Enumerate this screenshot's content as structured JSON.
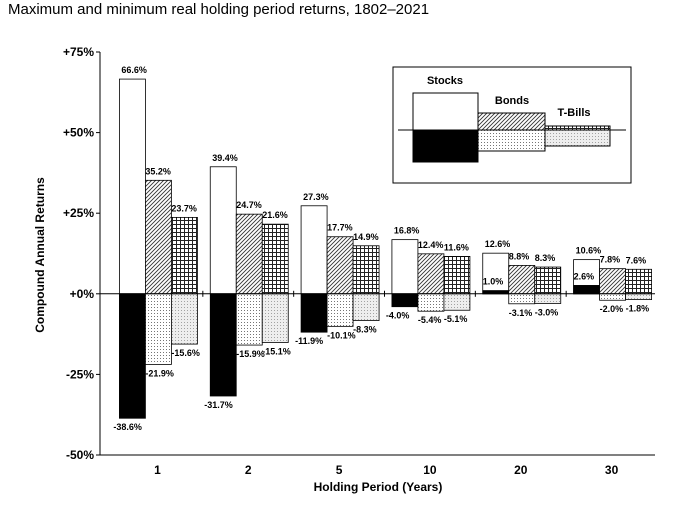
{
  "chart_data": {
    "type": "floating-bar",
    "title": "Maximum and minimum real holding period returns, 1802–2021",
    "y_label": "Compound Annual Returns",
    "x_label": "Holding Period (Years)",
    "categories": [
      "1",
      "2",
      "5",
      "10",
      "20",
      "30"
    ],
    "ylim": [
      -50,
      75
    ],
    "yticks": [
      {
        "value": 75,
        "label": "+75%"
      },
      {
        "value": 50,
        "label": "+50%"
      },
      {
        "value": 25,
        "label": "+25%"
      },
      {
        "value": 0,
        "label": "+0%"
      },
      {
        "value": -25,
        "label": "-25%"
      },
      {
        "value": -50,
        "label": "-50%"
      }
    ],
    "series": [
      {
        "name": "Stocks",
        "max_values": [
          66.6,
          39.4,
          27.3,
          16.8,
          12.6,
          10.6
        ],
        "max_value_labels": [
          "66.6%",
          "39.4%",
          "27.3%",
          "16.8%",
          "12.6%",
          "10.6%"
        ],
        "min_values": [
          -38.6,
          -31.7,
          -11.9,
          -4.0,
          1.0,
          2.6
        ],
        "min_value_labels": [
          "-38.6%",
          "-31.7%",
          "-11.9%",
          "-4.0%",
          "1.0%",
          "2.6%"
        ]
      },
      {
        "name": "Bonds",
        "max_values": [
          35.2,
          24.7,
          17.7,
          12.4,
          8.8,
          7.8
        ],
        "max_value_labels": [
          "35.2%",
          "24.7%",
          "17.7%",
          "12.4%",
          "8.8%",
          "7.8%"
        ],
        "min_values": [
          -21.9,
          -15.9,
          -10.1,
          -5.4,
          -3.1,
          -2.0
        ],
        "min_value_labels": [
          "-21.9%",
          "-15.9%",
          "-10.1%",
          "-5.4%",
          "-3.1%",
          "-2.0%"
        ]
      },
      {
        "name": "T-Bills",
        "max_values": [
          23.7,
          21.6,
          14.9,
          11.6,
          8.3,
          7.6
        ],
        "max_value_labels": [
          "23.7%",
          "21.6%",
          "14.9%",
          "11.6%",
          "8.3%",
          "7.6%"
        ],
        "min_values": [
          -15.6,
          -15.1,
          -8.3,
          -5.1,
          -3.0,
          -1.8
        ],
        "min_value_labels": [
          "-15.6%",
          "-15.1%",
          "-8.3%",
          "-5.1%",
          "-3.0%",
          "-1.8%"
        ]
      }
    ]
  }
}
